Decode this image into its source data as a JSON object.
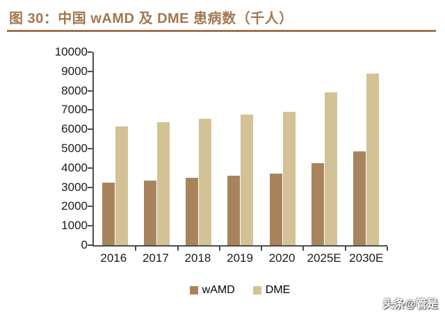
{
  "title": "图 30：中国 wAMD 及 DME 患病数（千人）",
  "watermark": "头条@管是",
  "colors": {
    "title_brown": "#a07850",
    "underline_brown": "#9c7351",
    "axis_gray": "#4d4d4d",
    "wamd_bar": "#a8845c",
    "dme_bar": "#d3c295"
  },
  "chart_data": {
    "type": "bar",
    "title": "中国 wAMD 及 DME 患病数（千人）",
    "categories": [
      "2016",
      "2017",
      "2018",
      "2019",
      "2020",
      "2025E",
      "2030E"
    ],
    "series": [
      {
        "name": "wAMD",
        "color": "#a8845c",
        "values": [
          3250,
          3350,
          3500,
          3600,
          3700,
          4250,
          4850
        ]
      },
      {
        "name": "DME",
        "color": "#d3c295",
        "values": [
          6150,
          6350,
          6550,
          6750,
          6900,
          7900,
          8900
        ]
      }
    ],
    "xlabel": "",
    "ylabel": "",
    "ylim": [
      0,
      10000
    ],
    "y_ticks": [
      0,
      1000,
      2000,
      3000,
      4000,
      5000,
      6000,
      7000,
      8000,
      9000,
      10000
    ],
    "grid": false,
    "legend_position": "bottom"
  }
}
